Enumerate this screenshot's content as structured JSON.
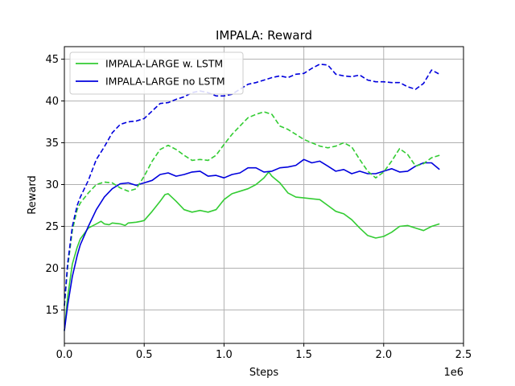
{
  "chart_data": {
    "type": "line",
    "title": "IMPALA: Reward",
    "xlabel": "Steps",
    "ylabel": "Reward",
    "x_offset_text": "1e6",
    "xlim": [
      0,
      2500000
    ],
    "ylim": [
      11,
      46.5
    ],
    "xticks": [
      0,
      500000,
      1000000,
      1500000,
      2000000,
      2500000
    ],
    "xtick_labels": [
      "0.0",
      "0.5",
      "1.0",
      "1.5",
      "2.0",
      "2.5"
    ],
    "yticks": [
      15,
      20,
      25,
      30,
      35,
      40,
      45
    ],
    "ytick_labels": [
      "15",
      "20",
      "25",
      "30",
      "35",
      "40",
      "45"
    ],
    "grid": true,
    "legend_position": "top-left",
    "colors": {
      "green": "#33cc33",
      "blue": "#0000dd"
    },
    "series": [
      {
        "name": "IMPALA-LARGE w. LSTM",
        "color": "#33cc33",
        "style": "solid",
        "x": [
          0,
          20000,
          50000,
          80000,
          100000,
          150000,
          200000,
          230000,
          250000,
          280000,
          300000,
          350000,
          380000,
          400000,
          450000,
          480000,
          500000,
          550000,
          600000,
          630000,
          650000,
          700000,
          750000,
          800000,
          850000,
          900000,
          950000,
          1000000,
          1050000,
          1100000,
          1150000,
          1200000,
          1250000,
          1280000,
          1300000,
          1350000,
          1400000,
          1450000,
          1500000,
          1550000,
          1600000,
          1650000,
          1700000,
          1750000,
          1800000,
          1850000,
          1900000,
          1950000,
          2000000,
          2050000,
          2100000,
          2150000,
          2200000,
          2250000,
          2300000,
          2350000
        ],
        "y": [
          12.5,
          16.5,
          20.5,
          22.5,
          23.5,
          24.8,
          25.3,
          25.6,
          25.3,
          25.2,
          25.4,
          25.3,
          25.1,
          25.4,
          25.5,
          25.6,
          25.7,
          26.8,
          28.0,
          28.8,
          28.9,
          28.0,
          27.0,
          26.7,
          26.9,
          26.7,
          27.0,
          28.2,
          28.9,
          29.2,
          29.5,
          30.0,
          30.8,
          31.5,
          31.0,
          30.2,
          29.0,
          28.5,
          28.4,
          28.3,
          28.2,
          27.5,
          26.8,
          26.5,
          25.8,
          24.8,
          23.9,
          23.6,
          23.8,
          24.3,
          25.0,
          25.1,
          24.8,
          24.5,
          25.0,
          25.3
        ]
      },
      {
        "name": "IMPALA-LARGE no LSTM",
        "color": "#0000dd",
        "style": "solid",
        "x": [
          0,
          20000,
          50000,
          80000,
          100000,
          150000,
          200000,
          250000,
          300000,
          350000,
          400000,
          450000,
          480000,
          500000,
          550000,
          600000,
          650000,
          700000,
          750000,
          800000,
          850000,
          900000,
          950000,
          1000000,
          1050000,
          1100000,
          1150000,
          1200000,
          1250000,
          1300000,
          1350000,
          1400000,
          1450000,
          1500000,
          1550000,
          1600000,
          1650000,
          1700000,
          1750000,
          1800000,
          1850000,
          1900000,
          1950000,
          2000000,
          2050000,
          2100000,
          2150000,
          2200000,
          2250000,
          2300000,
          2350000
        ],
        "y": [
          12.5,
          15.5,
          19.0,
          21.5,
          22.8,
          25.0,
          27.0,
          28.5,
          29.5,
          30.1,
          30.2,
          29.9,
          30.1,
          30.2,
          30.5,
          31.2,
          31.4,
          31.0,
          31.2,
          31.5,
          31.6,
          31.0,
          31.1,
          30.8,
          31.2,
          31.4,
          32.0,
          32.0,
          31.5,
          31.6,
          32.0,
          32.1,
          32.3,
          33.0,
          32.6,
          32.8,
          32.2,
          31.6,
          31.8,
          31.3,
          31.6,
          31.3,
          31.3,
          31.6,
          31.9,
          31.5,
          31.6,
          32.2,
          32.6,
          32.6,
          31.8
        ]
      },
      {
        "name": "",
        "color": "#33cc33",
        "style": "dashed",
        "x": [
          0,
          20000,
          50000,
          80000,
          100000,
          150000,
          200000,
          250000,
          300000,
          350000,
          400000,
          450000,
          500000,
          550000,
          600000,
          650000,
          700000,
          750000,
          800000,
          850000,
          900000,
          950000,
          1000000,
          1050000,
          1100000,
          1150000,
          1200000,
          1250000,
          1300000,
          1350000,
          1400000,
          1450000,
          1500000,
          1550000,
          1600000,
          1650000,
          1700000,
          1750000,
          1800000,
          1850000,
          1900000,
          1950000,
          2000000,
          2050000,
          2100000,
          2150000,
          2200000,
          2250000,
          2300000,
          2350000
        ],
        "y": [
          15.5,
          20.0,
          24.5,
          27.0,
          27.8,
          29.0,
          30.0,
          30.3,
          30.2,
          29.6,
          29.2,
          29.5,
          31.0,
          32.8,
          34.2,
          34.7,
          34.2,
          33.5,
          32.9,
          33.0,
          32.9,
          33.5,
          34.8,
          36.0,
          37.0,
          38.0,
          38.4,
          38.7,
          38.4,
          37.0,
          36.6,
          36.0,
          35.4,
          35.0,
          34.6,
          34.4,
          34.6,
          35.0,
          34.5,
          33.0,
          31.6,
          30.8,
          31.5,
          32.8,
          34.3,
          33.6,
          32.2,
          32.5,
          33.2,
          33.5
        ]
      },
      {
        "name": "",
        "color": "#0000dd",
        "style": "dashed",
        "x": [
          0,
          20000,
          50000,
          80000,
          100000,
          150000,
          200000,
          250000,
          300000,
          350000,
          400000,
          450000,
          500000,
          550000,
          600000,
          650000,
          700000,
          750000,
          800000,
          850000,
          900000,
          950000,
          1000000,
          1050000,
          1100000,
          1150000,
          1200000,
          1250000,
          1300000,
          1350000,
          1400000,
          1450000,
          1500000,
          1550000,
          1600000,
          1650000,
          1700000,
          1750000,
          1800000,
          1850000,
          1900000,
          1950000,
          2000000,
          2050000,
          2100000,
          2150000,
          2200000,
          2250000,
          2300000,
          2350000
        ],
        "y": [
          15.5,
          20.5,
          25.0,
          27.5,
          28.5,
          30.5,
          33.0,
          34.5,
          36.2,
          37.2,
          37.5,
          37.6,
          37.9,
          38.8,
          39.7,
          39.8,
          40.2,
          40.5,
          41.0,
          41.2,
          41.0,
          40.6,
          40.6,
          40.8,
          41.4,
          42.0,
          42.2,
          42.5,
          42.8,
          43.0,
          42.8,
          43.2,
          43.3,
          43.9,
          44.4,
          44.3,
          43.2,
          43.0,
          42.9,
          43.1,
          42.5,
          42.3,
          42.3,
          42.2,
          42.2,
          41.7,
          41.4,
          42.1,
          43.7,
          43.2
        ]
      }
    ]
  }
}
